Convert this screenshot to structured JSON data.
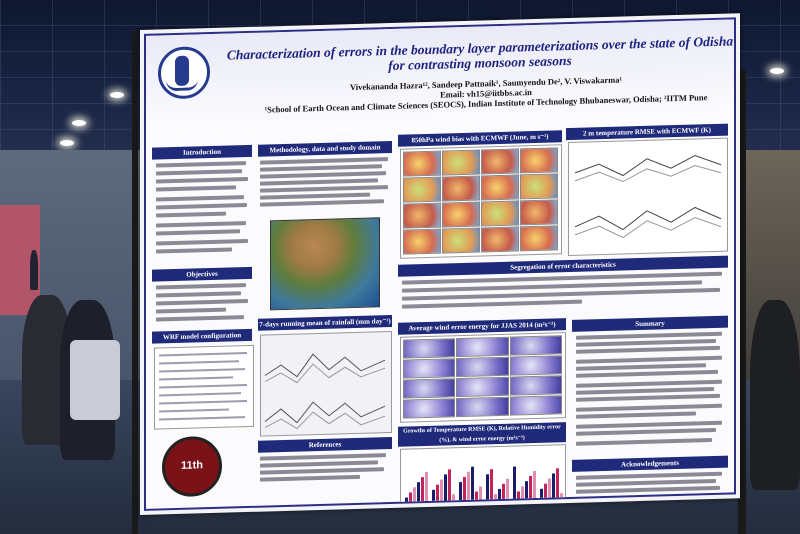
{
  "poster": {
    "title": "Characterization of errors in the boundary layer parameterizations over the state of Odisha for contrasting monsoon seasons",
    "authors": "Vivekananda Hazra¹², Sandeep Pattnaik¹, Saumyendu De², V. Viswakarma¹",
    "email": "Email: vh15@iitbbs.ac.in",
    "affiliation": "¹School of Earth Ocean and Climate Sciences (SEOCS), Indian Institute of Technology Bhubaneswar, Odisha; ²IITM Pune",
    "sections": {
      "introduction": "Introduction",
      "methods": "Methodology, data and study domain",
      "wind_bias": "850hPa wind bias with ECMWF (June, m s⁻¹)",
      "temp_rmse": "2 m temperature RMSE with ECMWF (K)",
      "segregation": "Segregation of error characteristics",
      "objectives": "Objectives",
      "wrf_config": "WRF model configuration",
      "rainfall": "7-days running mean of rainfall (mm day⁻¹)",
      "energy": "Average wind error energy for JJAS 2014 (m²s⁻²)",
      "growth": "Growths of Temperature RMSE (K), Relative Humidity error (%), & wind error energy (m²s⁻²)",
      "summary": "Summary",
      "references": "References",
      "acknowledgements": "Acknowledgements"
    },
    "badge": "11th"
  }
}
